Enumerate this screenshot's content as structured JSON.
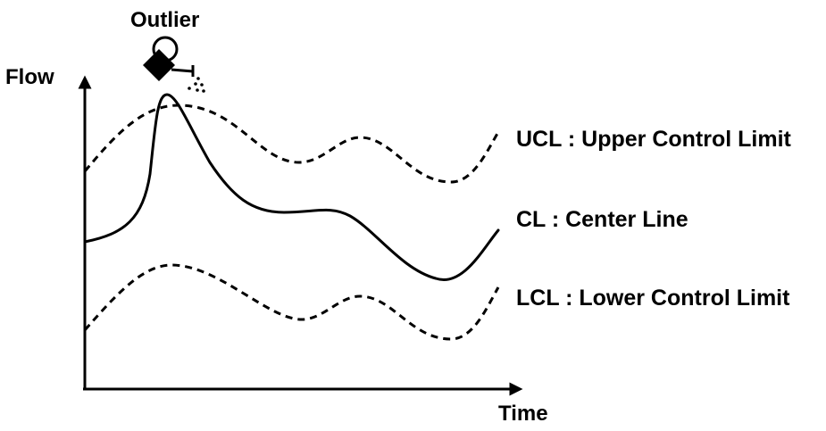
{
  "axes": {
    "y_label": "Flow",
    "x_label": "Time"
  },
  "outlier": {
    "label": "Outlier",
    "icon": "watering-can-icon"
  },
  "lines": {
    "ucl": "UCL : Upper Control Limit",
    "cl": "CL : Center Line",
    "lcl": "LCL : Lower Control Limit"
  },
  "colors": {
    "ink": "#000000",
    "background": "#ffffff"
  }
}
